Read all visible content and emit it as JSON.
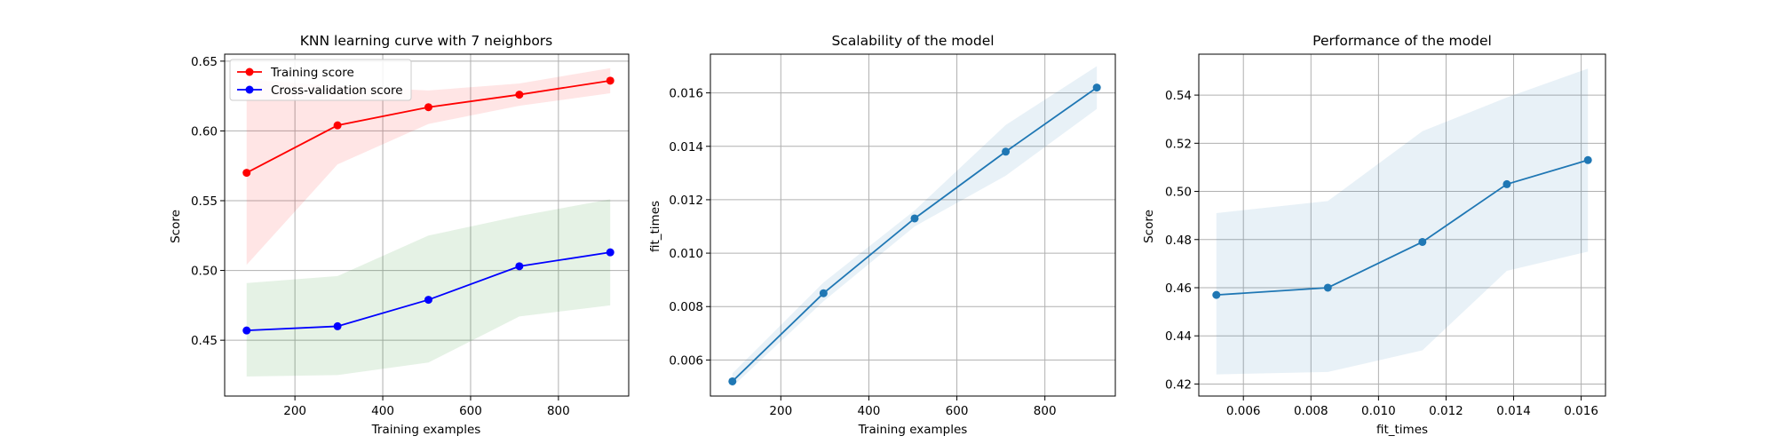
{
  "chart_data": [
    {
      "type": "line",
      "title": "KNN learning curve with 7 neighbors",
      "xlabel": "Training examples",
      "ylabel": "Score",
      "xlim": [
        40,
        960
      ],
      "ylim": [
        0.41,
        0.655
      ],
      "xticks": [
        200,
        400,
        600,
        800
      ],
      "xtick_labels": [
        "200",
        "400",
        "600",
        "800"
      ],
      "yticks": [
        0.45,
        0.5,
        0.55,
        0.6,
        0.65
      ],
      "ytick_labels": [
        "0.45",
        "0.50",
        "0.55",
        "0.60",
        "0.65"
      ],
      "grid": true,
      "legend": "top-left",
      "x": [
        90,
        297,
        504,
        711,
        918
      ],
      "series": [
        {
          "name": "Training score",
          "color": "#ff0000",
          "values": [
            0.57,
            0.604,
            0.617,
            0.626,
            0.636
          ],
          "band_low": [
            0.504,
            0.576,
            0.605,
            0.618,
            0.627
          ],
          "band_high": [
            0.637,
            0.632,
            0.629,
            0.634,
            0.645
          ],
          "band_color": "#ff0000"
        },
        {
          "name": "Cross-validation score",
          "color": "#0000ff",
          "values": [
            0.457,
            0.46,
            0.479,
            0.503,
            0.513
          ],
          "band_low": [
            0.424,
            0.425,
            0.434,
            0.467,
            0.475
          ],
          "band_high": [
            0.491,
            0.496,
            0.525,
            0.539,
            0.551
          ],
          "band_color": "#008000"
        }
      ]
    },
    {
      "type": "line",
      "title": "Scalability of the model",
      "xlabel": "Training examples",
      "ylabel": "fit_times",
      "xlim": [
        40,
        960
      ],
      "ylim": [
        0.00465,
        0.01745
      ],
      "xticks": [
        200,
        400,
        600,
        800
      ],
      "xtick_labels": [
        "200",
        "400",
        "600",
        "800"
      ],
      "yticks": [
        0.006,
        0.008,
        0.01,
        0.012,
        0.014,
        0.016
      ],
      "ytick_labels": [
        "0.006",
        "0.008",
        "0.010",
        "0.012",
        "0.014",
        "0.016"
      ],
      "grid": true,
      "x": [
        90,
        297,
        504,
        711,
        918
      ],
      "series": [
        {
          "color": "#1f77b4",
          "values": [
            0.0052,
            0.0085,
            0.0113,
            0.0138,
            0.0162
          ],
          "band_low": [
            0.005,
            0.0082,
            0.011,
            0.0129,
            0.0154
          ],
          "band_high": [
            0.0055,
            0.0089,
            0.0116,
            0.0148,
            0.017
          ],
          "band_color": "#1f77b4"
        }
      ]
    },
    {
      "type": "line",
      "title": "Performance of the model",
      "xlabel": "fit_times",
      "ylabel": "Score",
      "xlim": [
        0.00468,
        0.01672
      ],
      "ylim": [
        0.415,
        0.557
      ],
      "xticks": [
        0.006,
        0.008,
        0.01,
        0.012,
        0.014,
        0.016
      ],
      "xtick_labels": [
        "0.006",
        "0.008",
        "0.010",
        "0.012",
        "0.014",
        "0.016"
      ],
      "yticks": [
        0.42,
        0.44,
        0.46,
        0.48,
        0.5,
        0.52,
        0.54
      ],
      "ytick_labels": [
        "0.42",
        "0.44",
        "0.46",
        "0.48",
        "0.50",
        "0.52",
        "0.54"
      ],
      "grid": true,
      "x": [
        0.0052,
        0.0085,
        0.0113,
        0.0138,
        0.0162
      ],
      "series": [
        {
          "color": "#1f77b4",
          "values": [
            0.457,
            0.46,
            0.479,
            0.503,
            0.513
          ],
          "band_low": [
            0.424,
            0.425,
            0.434,
            0.467,
            0.475
          ],
          "band_high": [
            0.491,
            0.496,
            0.525,
            0.539,
            0.551
          ],
          "band_color": "#1f77b4"
        }
      ]
    }
  ]
}
